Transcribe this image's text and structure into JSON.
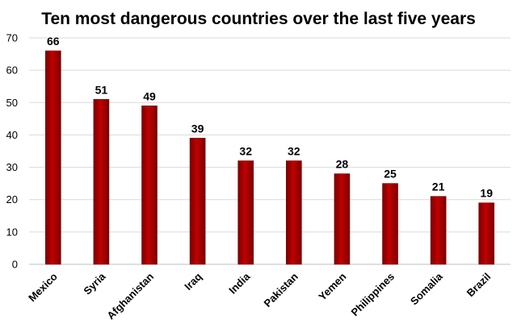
{
  "chart_data": {
    "type": "bar",
    "title": "Ten most dangerous countries over the last five years",
    "categories": [
      "Mexico",
      "Syria",
      "Afghanistan",
      "Iraq",
      "India",
      "Pakistan",
      "Yemen",
      "Philippines",
      "Somalia",
      "Brazil"
    ],
    "values": [
      66,
      51,
      49,
      39,
      32,
      32,
      28,
      25,
      21,
      19
    ],
    "ylim": [
      0,
      70
    ],
    "yticks": [
      0,
      10,
      20,
      30,
      40,
      50,
      60,
      70
    ],
    "grid": true,
    "legend": "none",
    "bar_color": "#c00000",
    "bar_color_dark": "#7a0000"
  }
}
